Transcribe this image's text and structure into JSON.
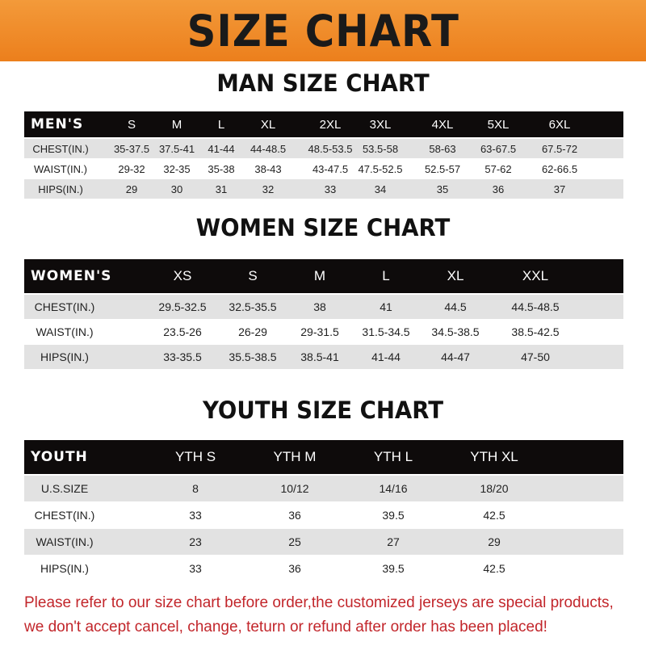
{
  "title": "SIZE CHART",
  "men": {
    "heading": "MAN SIZE CHART",
    "label": "MEN'S",
    "sizes": [
      "S",
      "M",
      "L",
      "XL",
      "2XL",
      "3XL",
      "4XL",
      "5XL",
      "6XL"
    ],
    "rows": [
      {
        "name": "CHEST(IN.)",
        "values": [
          "35-37.5",
          "37.5-41",
          "41-44",
          "44-48.5",
          "48.5-53.5",
          "53.5-58",
          "58-63",
          "63-67.5",
          "67.5-72"
        ]
      },
      {
        "name": "WAIST(IN.)",
        "values": [
          "29-32",
          "32-35",
          "35-38",
          "38-43",
          "43-47.5",
          "47.5-52.5",
          "52.5-57",
          "57-62",
          "62-66.5"
        ]
      },
      {
        "name": "HIPS(IN.)",
        "values": [
          "29",
          "30",
          "31",
          "32",
          "33",
          "34",
          "35",
          "36",
          "37"
        ]
      }
    ]
  },
  "women": {
    "heading": "WOMEN SIZE CHART",
    "label": "WOMEN'S",
    "sizes": [
      "XS",
      "S",
      "M",
      "L",
      "XL",
      "XXL"
    ],
    "rows": [
      {
        "name": "CHEST(IN.)",
        "values": [
          "29.5-32.5",
          "32.5-35.5",
          "38",
          "41",
          "44.5",
          "44.5-48.5"
        ]
      },
      {
        "name": "WAIST(IN.)",
        "values": [
          "23.5-26",
          "26-29",
          "29-31.5",
          "31.5-34.5",
          "34.5-38.5",
          "38.5-42.5"
        ]
      },
      {
        "name": "HIPS(IN.)",
        "values": [
          "33-35.5",
          "35.5-38.5",
          "38.5-41",
          "41-44",
          "44-47",
          "47-50"
        ]
      }
    ]
  },
  "youth": {
    "heading": "YOUTH SIZE CHART",
    "label": "YOUTH",
    "sizes": [
      "YTH S",
      "YTH M",
      "YTH L",
      "YTH XL"
    ],
    "rows": [
      {
        "name": "U.S.SIZE",
        "values": [
          "8",
          "10/12",
          "14/16",
          "18/20"
        ]
      },
      {
        "name": "CHEST(IN.)",
        "values": [
          "33",
          "36",
          "39.5",
          "42.5"
        ]
      },
      {
        "name": "WAIST(IN.)",
        "values": [
          "23",
          "25",
          "27",
          "29"
        ]
      },
      {
        "name": "HIPS(IN.)",
        "values": [
          "33",
          "36",
          "39.5",
          "42.5"
        ]
      }
    ]
  },
  "note": {
    "line1": "Please refer to our size chart before order,the customized jerseys are special products,",
    "line2": "we don't accept cancel, change, teturn or refund after order has been placed!"
  },
  "colors": {
    "banner": "#ee8726",
    "header_row": "#0e0b0b",
    "stripe": "#e2e2e2",
    "note": "#c2262b"
  }
}
